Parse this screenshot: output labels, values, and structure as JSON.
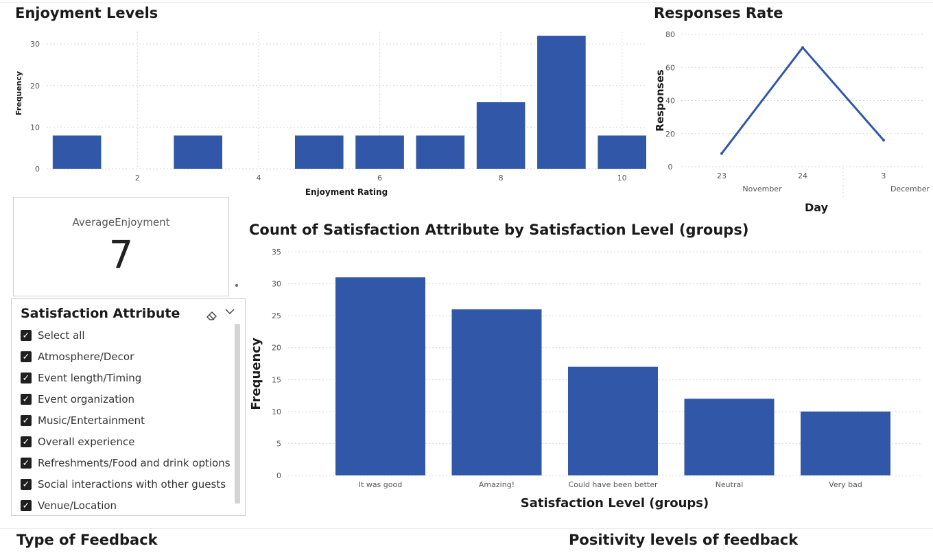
{
  "headings": {
    "type_of_feedback": "Type of Feedback",
    "positivity": "Positivity levels of feedback"
  },
  "card": {
    "label": "AverageEnjoyment",
    "value": "7"
  },
  "slicer": {
    "title": "Satisfaction Attribute",
    "items": [
      {
        "label": "Select all",
        "checked": true
      },
      {
        "label": "Atmosphere/Decor",
        "checked": true
      },
      {
        "label": "Event length/Timing",
        "checked": true
      },
      {
        "label": "Event organization",
        "checked": true
      },
      {
        "label": "Music/Entertainment",
        "checked": true
      },
      {
        "label": "Overall experience",
        "checked": true
      },
      {
        "label": "Refreshments/Food and drink options",
        "checked": true
      },
      {
        "label": "Social interactions with other guests",
        "checked": true
      },
      {
        "label": "Venue/Location",
        "checked": true
      }
    ],
    "icons": {
      "clear": "eraser-icon",
      "expand": "chevron-down-icon"
    }
  },
  "colors": {
    "bar": "#3157a8",
    "line": "#3157a8"
  },
  "chart_data": [
    {
      "type": "bar",
      "title": "Enjoyment Levels",
      "xlabel": "Enjoyment Rating",
      "ylabel": "Frequency",
      "x": [
        1,
        3,
        5,
        6,
        7,
        8,
        9,
        10
      ],
      "values": [
        8,
        8,
        8,
        8,
        8,
        16,
        32,
        8
      ],
      "xlim": [
        0.5,
        10.4
      ],
      "xticks": [
        2,
        4,
        6,
        8,
        10
      ],
      "ylim": [
        0,
        33
      ],
      "yticks": [
        0,
        10,
        20,
        30
      ],
      "grid": true
    },
    {
      "type": "line",
      "title": "Responses Rate",
      "xlabel": "Day",
      "ylabel": "Responses",
      "categories": [
        "23",
        "24",
        "3"
      ],
      "groups": [
        {
          "label": "November",
          "span": 2
        },
        {
          "label": "December",
          "span": 1
        }
      ],
      "values": [
        8,
        72,
        16
      ],
      "ylim": [
        0,
        80
      ],
      "yticks": [
        0,
        20,
        40,
        60,
        80
      ],
      "grid": true
    },
    {
      "type": "bar",
      "title": "Count of Satisfaction Attribute by Satisfaction Level (groups)",
      "xlabel": "Satisfaction Level (groups)",
      "ylabel": "Frequency",
      "categories": [
        "It was good",
        "Amazing!",
        "Could have been better",
        "Neutral",
        "Very bad"
      ],
      "values": [
        31,
        26,
        17,
        12,
        10
      ],
      "ylim": [
        0,
        35
      ],
      "yticks": [
        0,
        5,
        10,
        15,
        20,
        25,
        30,
        35
      ],
      "grid": true
    }
  ]
}
